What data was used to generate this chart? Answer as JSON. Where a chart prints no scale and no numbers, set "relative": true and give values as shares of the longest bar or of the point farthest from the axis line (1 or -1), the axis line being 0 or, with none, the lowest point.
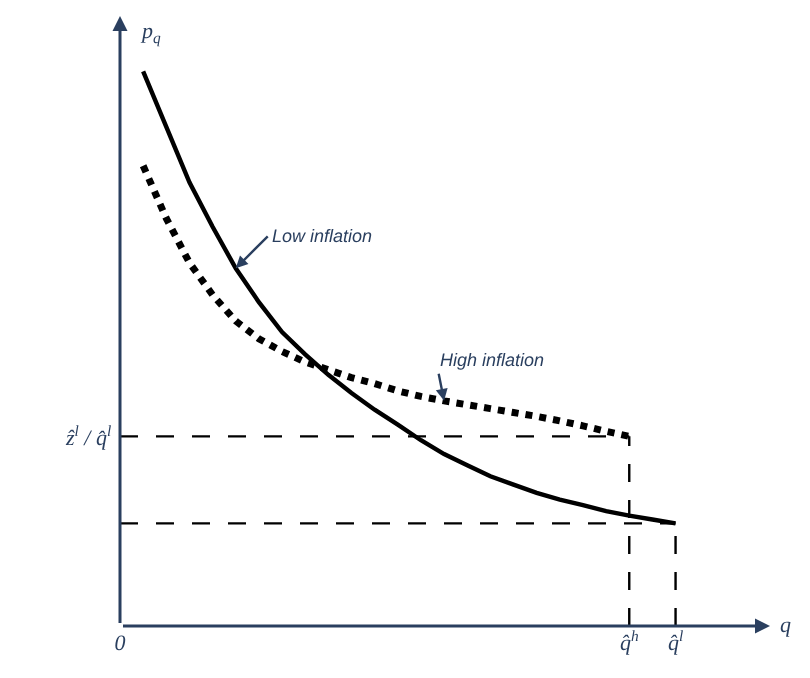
{
  "chart_data": {
    "type": "line",
    "relative": true,
    "xlabel": "q",
    "ylabel": "p$_{q}$",
    "legend": false,
    "categories": [
      "0",
      null,
      null,
      null,
      null,
      null,
      null,
      null,
      null,
      null,
      null,
      null,
      null,
      null,
      null,
      null,
      null,
      null,
      null,
      null,
      null,
      null,
      "q̂$^{h}$",
      null,
      "q̂$^{l}$"
    ],
    "series": [
      {
        "name": "Low inflation",
        "color": "#000000",
        "line_style": "solid",
        "values": [
          null,
          1.0,
          0.9,
          0.8,
          0.72,
          0.645,
          0.584,
          0.53,
          0.49,
          0.453,
          0.42,
          0.39,
          0.363,
          0.335,
          0.31,
          0.29,
          0.27,
          0.255,
          0.24,
          0.228,
          0.218,
          0.207,
          0.199,
          0.192,
          0.185
        ]
      },
      {
        "name": "High inflation",
        "color": "#000000",
        "line_style": "dotted",
        "values": [
          null,
          0.83,
          0.735,
          0.655,
          0.597,
          0.55,
          0.518,
          0.495,
          0.476,
          0.462,
          0.448,
          0.437,
          0.424,
          0.414,
          0.406,
          0.399,
          0.392,
          0.385,
          0.378,
          0.37,
          0.361,
          0.351,
          0.342,
          null,
          null
        ]
      },
      {
        "name": "ẑ$^{l}$ / q̂$^{l}$",
        "color": "#000000",
        "line_style": "dashed",
        "values": [
          0.342,
          0.342,
          0.342,
          0.342,
          0.342,
          0.342,
          0.342,
          0.342,
          0.342,
          0.342,
          0.342,
          0.342,
          0.342,
          0.342,
          0.342,
          0.342,
          0.342,
          0.342,
          0.342,
          0.342,
          0.342,
          0.342,
          0.342,
          null,
          null
        ]
      },
      {
        "color": "#000000",
        "line_style": "dashed",
        "values": [
          0.185,
          0.185,
          0.185,
          0.185,
          0.185,
          0.185,
          0.185,
          0.185,
          0.185,
          0.185,
          0.185,
          0.185,
          0.185,
          0.185,
          0.185,
          0.185,
          0.185,
          0.185,
          0.185,
          0.185,
          0.185,
          0.185,
          0.185,
          0.185,
          0.185
        ]
      }
    ],
    "ref_lines": [
      {
        "axis": "x",
        "value": "q̂$^{h}$",
        "color": "#000000",
        "line_style": "dashed"
      },
      {
        "axis": "x",
        "value": "q̂$^{l}$",
        "color": "#000000",
        "line_style": "dashed"
      }
    ]
  }
}
